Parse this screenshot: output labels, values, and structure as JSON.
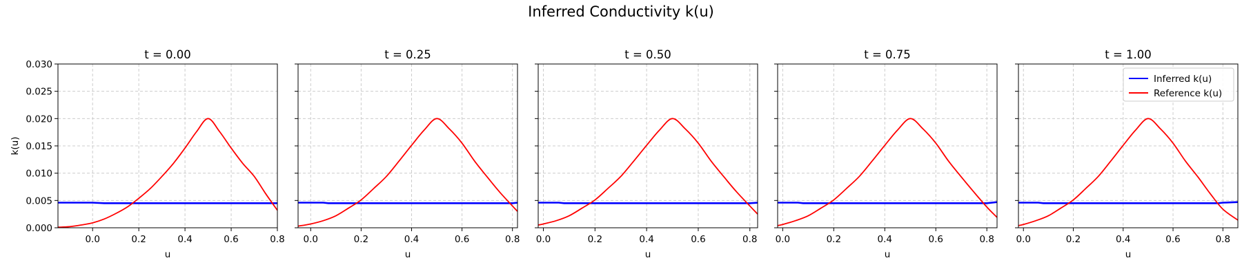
{
  "figure": {
    "title": "Inferred Conductivity k(u)"
  },
  "chart_data": [
    {
      "type": "line",
      "title": "t = 0.00",
      "xlabel": "u",
      "ylabel": "k(u)",
      "xlim": [
        -0.15,
        0.8
      ],
      "ylim": [
        0,
        0.03
      ],
      "xticks": [
        "0.0",
        "0.2",
        "0.4",
        "0.6",
        "0.8"
      ],
      "yticks": [
        "0.000",
        "0.005",
        "0.010",
        "0.015",
        "0.020",
        "0.025",
        "0.030"
      ],
      "grid": true,
      "series": [
        {
          "name": "Inferred k(u)",
          "color": "#0000ff",
          "x": [
            -0.15,
            0.0,
            0.05,
            0.1,
            0.2,
            0.3,
            0.4,
            0.5,
            0.6,
            0.7,
            0.8
          ],
          "y": [
            0.0046,
            0.0046,
            0.0045,
            0.0045,
            0.0045,
            0.0045,
            0.0045,
            0.0045,
            0.0045,
            0.0045,
            0.0045
          ]
        },
        {
          "name": "Reference k(u)",
          "color": "#ff0000",
          "x": [
            -0.15,
            -0.1,
            -0.05,
            0.0,
            0.05,
            0.1,
            0.15,
            0.2,
            0.25,
            0.3,
            0.35,
            0.4,
            0.45,
            0.5,
            0.55,
            0.6,
            0.65,
            0.7,
            0.75,
            0.8
          ],
          "y": [
            0.0001,
            0.0002,
            0.0005,
            0.0009,
            0.0016,
            0.0026,
            0.0038,
            0.0054,
            0.0072,
            0.0094,
            0.0118,
            0.0146,
            0.0176,
            0.02,
            0.0176,
            0.0146,
            0.0118,
            0.0094,
            0.0062,
            0.0032
          ]
        }
      ]
    },
    {
      "type": "line",
      "title": "t = 0.25",
      "xlabel": "u",
      "ylabel": "",
      "xlim": [
        -0.05,
        0.82
      ],
      "ylim": [
        0,
        0.03
      ],
      "xticks": [
        "0.0",
        "0.2",
        "0.4",
        "0.6",
        "0.8"
      ],
      "yticks": [],
      "grid": true,
      "series": [
        {
          "name": "Inferred k(u)",
          "color": "#0000ff",
          "x": [
            -0.05,
            0.05,
            0.07,
            0.2,
            0.4,
            0.6,
            0.8,
            0.82
          ],
          "y": [
            0.0046,
            0.0046,
            0.0045,
            0.0045,
            0.0045,
            0.0045,
            0.0045,
            0.0046
          ]
        },
        {
          "name": "Reference k(u)",
          "color": "#ff0000",
          "x": [
            -0.05,
            0.0,
            0.05,
            0.1,
            0.15,
            0.2,
            0.25,
            0.3,
            0.35,
            0.4,
            0.45,
            0.5,
            0.55,
            0.6,
            0.65,
            0.7,
            0.75,
            0.82
          ],
          "y": [
            0.0003,
            0.0007,
            0.0013,
            0.0022,
            0.0036,
            0.0051,
            0.0072,
            0.0094,
            0.0122,
            0.0151,
            0.0179,
            0.02,
            0.0181,
            0.0155,
            0.0122,
            0.0093,
            0.0065,
            0.003
          ]
        }
      ]
    },
    {
      "type": "line",
      "title": "t = 0.50",
      "xlabel": "u",
      "ylabel": "",
      "xlim": [
        -0.02,
        0.83
      ],
      "ylim": [
        0,
        0.03
      ],
      "xticks": [
        "0.0",
        "0.2",
        "0.4",
        "0.6",
        "0.8"
      ],
      "yticks": [],
      "grid": true,
      "series": [
        {
          "name": "Inferred k(u)",
          "color": "#0000ff",
          "x": [
            -0.02,
            0.06,
            0.08,
            0.2,
            0.4,
            0.6,
            0.8,
            0.83
          ],
          "y": [
            0.0046,
            0.0046,
            0.0045,
            0.0045,
            0.0045,
            0.0045,
            0.0045,
            0.0046
          ]
        },
        {
          "name": "Reference k(u)",
          "color": "#ff0000",
          "x": [
            -0.02,
            0.0,
            0.05,
            0.1,
            0.15,
            0.2,
            0.25,
            0.3,
            0.35,
            0.4,
            0.45,
            0.5,
            0.55,
            0.6,
            0.65,
            0.7,
            0.75,
            0.83
          ],
          "y": [
            0.0005,
            0.0007,
            0.0013,
            0.0022,
            0.0036,
            0.0051,
            0.0072,
            0.0094,
            0.0122,
            0.0151,
            0.0179,
            0.02,
            0.0181,
            0.0155,
            0.0122,
            0.0093,
            0.0065,
            0.0025
          ]
        }
      ]
    },
    {
      "type": "line",
      "title": "t = 0.75",
      "xlabel": "u",
      "ylabel": "",
      "xlim": [
        -0.02,
        0.84
      ],
      "ylim": [
        0,
        0.03
      ],
      "xticks": [
        "0.0",
        "0.2",
        "0.4",
        "0.6",
        "0.8"
      ],
      "yticks": [],
      "grid": true,
      "series": [
        {
          "name": "Inferred k(u)",
          "color": "#0000ff",
          "x": [
            -0.02,
            0.06,
            0.08,
            0.2,
            0.4,
            0.6,
            0.8,
            0.84
          ],
          "y": [
            0.0046,
            0.0046,
            0.0045,
            0.0045,
            0.0045,
            0.0045,
            0.0045,
            0.0047
          ]
        },
        {
          "name": "Reference k(u)",
          "color": "#ff0000",
          "x": [
            -0.02,
            0.0,
            0.05,
            0.1,
            0.15,
            0.2,
            0.25,
            0.3,
            0.35,
            0.4,
            0.45,
            0.5,
            0.55,
            0.6,
            0.65,
            0.7,
            0.75,
            0.8,
            0.84
          ],
          "y": [
            0.0004,
            0.0006,
            0.0013,
            0.0022,
            0.0036,
            0.0051,
            0.0072,
            0.0094,
            0.0122,
            0.0151,
            0.0179,
            0.02,
            0.0181,
            0.0155,
            0.0122,
            0.0093,
            0.0065,
            0.0038,
            0.0019
          ]
        }
      ]
    },
    {
      "type": "line",
      "title": "t = 1.00",
      "xlabel": "u",
      "ylabel": "",
      "xlim": [
        -0.02,
        0.86
      ],
      "ylim": [
        0,
        0.03
      ],
      "xticks": [
        "0.0",
        "0.2",
        "0.4",
        "0.6",
        "0.8"
      ],
      "yticks": [],
      "grid": true,
      "legend": "top-right",
      "series": [
        {
          "name": "Inferred k(u)",
          "color": "#0000ff",
          "x": [
            -0.02,
            0.06,
            0.08,
            0.2,
            0.4,
            0.6,
            0.78,
            0.8,
            0.86
          ],
          "y": [
            0.0046,
            0.0046,
            0.0045,
            0.0045,
            0.0045,
            0.0045,
            0.0045,
            0.0046,
            0.0047
          ]
        },
        {
          "name": "Reference k(u)",
          "color": "#ff0000",
          "x": [
            -0.02,
            0.0,
            0.05,
            0.1,
            0.15,
            0.2,
            0.25,
            0.3,
            0.35,
            0.4,
            0.45,
            0.5,
            0.55,
            0.6,
            0.65,
            0.7,
            0.75,
            0.8,
            0.86
          ],
          "y": [
            0.0004,
            0.0006,
            0.0013,
            0.0022,
            0.0036,
            0.0051,
            0.0072,
            0.0094,
            0.0122,
            0.0151,
            0.0179,
            0.02,
            0.0181,
            0.0155,
            0.0122,
            0.0093,
            0.0062,
            0.0034,
            0.0014
          ]
        }
      ]
    }
  ]
}
